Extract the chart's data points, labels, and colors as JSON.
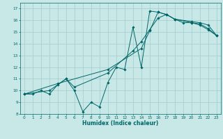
{
  "xlabel": "Humidex (Indice chaleur)",
  "bg_color": "#c8e8e8",
  "line_color": "#006666",
  "grid_color": "#a0cccc",
  "xlim": [
    -0.5,
    23.5
  ],
  "ylim": [
    8,
    17.5
  ],
  "xticks": [
    0,
    1,
    2,
    3,
    4,
    5,
    6,
    7,
    8,
    9,
    10,
    11,
    12,
    13,
    14,
    15,
    16,
    17,
    18,
    19,
    20,
    21,
    22,
    23
  ],
  "yticks": [
    8,
    9,
    10,
    11,
    12,
    13,
    14,
    15,
    16,
    17
  ],
  "line1_x": [
    0,
    1,
    2,
    3,
    4,
    5,
    6,
    7,
    8,
    9,
    10,
    11,
    12,
    13,
    14,
    15,
    16,
    17,
    18,
    19,
    20,
    21,
    22,
    23
  ],
  "line1_y": [
    9.7,
    9.7,
    10.0,
    9.7,
    10.5,
    11.0,
    10.0,
    8.2,
    9.0,
    8.6,
    10.7,
    12.0,
    11.8,
    15.4,
    12.0,
    16.8,
    16.7,
    16.5,
    16.1,
    15.8,
    15.8,
    15.6,
    15.2,
    14.7
  ],
  "line2_x": [
    0,
    3,
    5,
    6,
    10,
    13,
    14,
    15,
    16,
    17,
    18,
    20,
    21,
    22,
    23
  ],
  "line2_y": [
    9.7,
    10.0,
    11.0,
    10.3,
    11.5,
    13.4,
    14.2,
    15.2,
    16.2,
    16.5,
    16.1,
    15.9,
    15.8,
    15.6,
    14.7
  ],
  "line3_x": [
    0,
    4,
    10,
    14,
    15,
    16,
    17,
    18,
    20,
    21,
    22,
    23
  ],
  "line3_y": [
    9.7,
    10.6,
    11.8,
    13.6,
    15.1,
    16.7,
    16.5,
    16.1,
    15.8,
    15.7,
    15.3,
    14.7
  ]
}
